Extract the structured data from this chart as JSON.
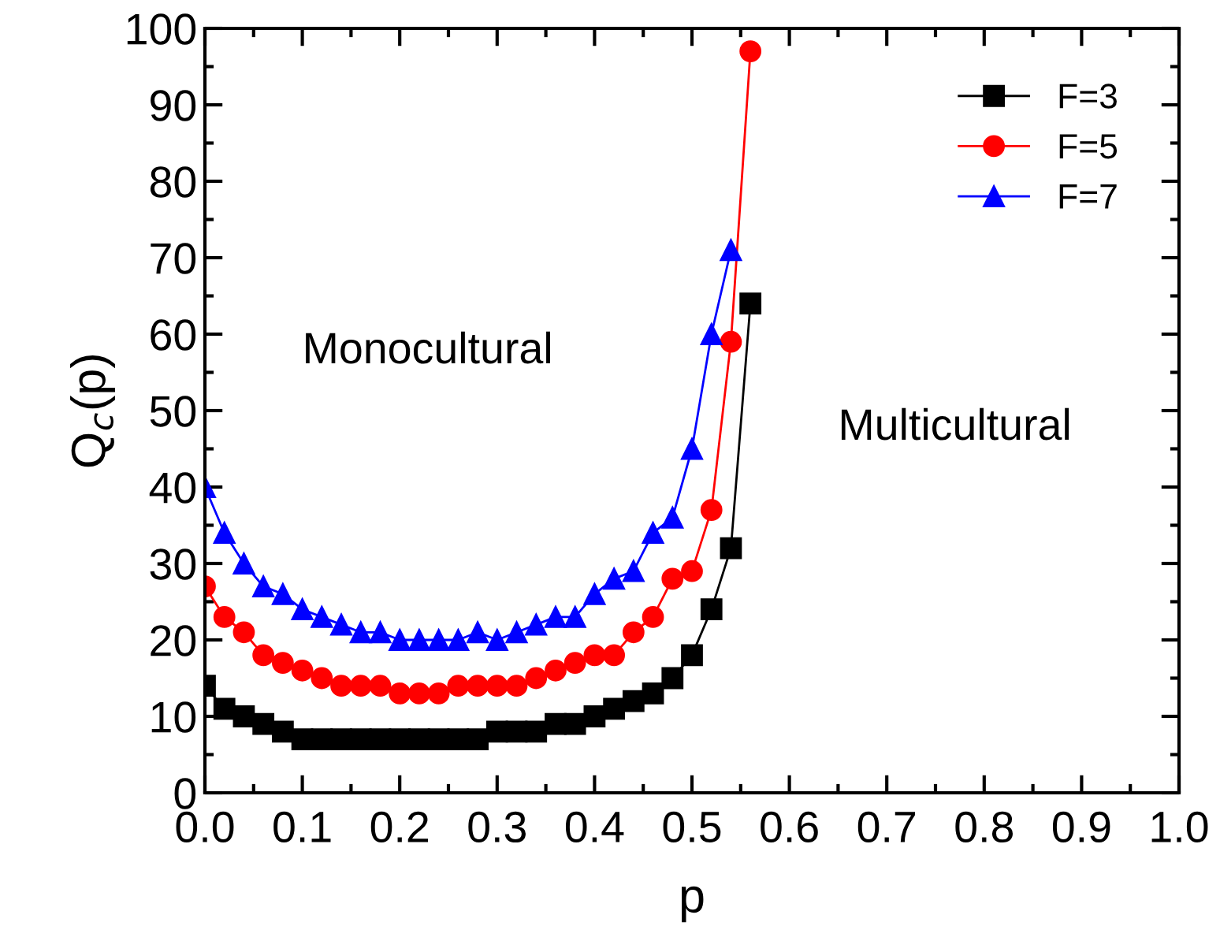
{
  "chart_data": {
    "type": "line",
    "xlabel": "p",
    "ylabel": "Q$_{c}$(p)",
    "x": [
      0,
      0.02,
      0.04,
      0.06,
      0.08,
      0.1,
      0.12,
      0.14,
      0.16,
      0.18,
      0.2,
      0.22,
      0.24,
      0.26,
      0.28,
      0.3,
      0.32,
      0.34,
      0.36,
      0.38,
      0.4,
      0.42,
      0.44,
      0.46,
      0.48,
      0.5,
      0.52,
      0.54,
      0.56
    ],
    "series": [
      {
        "name": "F=3",
        "color": "#000000",
        "marker": "square",
        "values": [
          14,
          11,
          10,
          9,
          8,
          7,
          7,
          7,
          7,
          7,
          7,
          7,
          7,
          7,
          7,
          8,
          8,
          8,
          9,
          9,
          10,
          11,
          12,
          13,
          15,
          18,
          24,
          32,
          64
        ]
      },
      {
        "name": "F=5",
        "color": "#ff0000",
        "marker": "circle",
        "values": [
          27,
          23,
          21,
          18,
          17,
          16,
          15,
          14,
          14,
          14,
          13,
          13,
          13,
          14,
          14,
          14,
          14,
          15,
          16,
          17,
          18,
          18,
          21,
          23,
          28,
          29,
          37,
          59,
          97
        ]
      },
      {
        "name": "F=7",
        "color": "#0000ff",
        "marker": "triangle",
        "values": [
          40,
          34,
          30,
          27,
          26,
          24,
          23,
          22,
          21,
          21,
          20,
          20,
          20,
          20,
          21,
          20,
          21,
          22,
          23,
          23,
          26,
          28,
          29,
          34,
          36,
          45,
          60,
          71,
          null
        ]
      }
    ],
    "xlim": [
      0,
      1.0
    ],
    "xticks": [
      {
        "value": 0,
        "label": "0.0"
      },
      0.1,
      0.2,
      0.3,
      0.4,
      0.5,
      0.6,
      0.7,
      0.8,
      0.9,
      {
        "value": 1.0,
        "label": "1.0"
      }
    ],
    "ylim": [
      0,
      100
    ],
    "yticks": [
      0,
      10,
      20,
      30,
      40,
      50,
      60,
      70,
      80,
      90,
      100
    ],
    "annotations": [
      "Monocultural",
      "Multicultural"
    ],
    "legend": "top right",
    "grid": false,
    "line_style": "solid"
  }
}
